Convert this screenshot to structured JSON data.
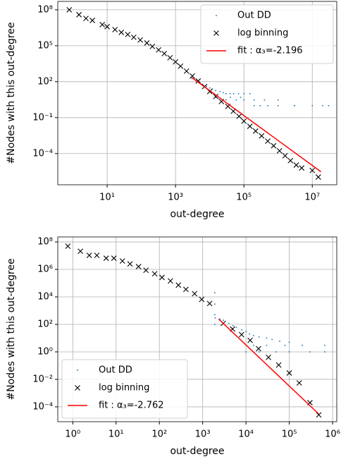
{
  "chart_data": [
    {
      "type": "scatter",
      "xscale": "log",
      "yscale": "log",
      "grid": true,
      "legend": "upper right",
      "xlabel": "out-degree",
      "ylabel": "#Nodes with this out-degree",
      "xlim": [
        0.36,
        52000000
      ],
      "ylim": [
        2.5e-07,
        500000000.0
      ],
      "xticks": [
        {
          "value": 10,
          "label": "10¹"
        },
        {
          "value": 1000,
          "label": "10³"
        },
        {
          "value": 100000,
          "label": "10⁵"
        },
        {
          "value": 10000000,
          "label": "10⁷"
        }
      ],
      "yticks": [
        {
          "value": 0.0001,
          "label": "10⁻⁴"
        },
        {
          "value": 0.1,
          "label": "10⁻¹"
        },
        {
          "value": 100,
          "label": "10²"
        },
        {
          "value": 100000,
          "label": "10⁵"
        },
        {
          "value": 100000000,
          "label": "10⁸"
        }
      ],
      "series": [
        {
          "name": "Out DD",
          "color": "#1f77b4",
          "style": "dot",
          "x": [
            3000,
            4000,
            5000,
            6000,
            8000,
            10000,
            12000,
            15000,
            20000,
            25000,
            30000,
            40000,
            50000,
            70000,
            100000,
            150000,
            200000,
            300000,
            500000,
            1000000,
            3000000,
            20000000,
            30000,
            60000,
            100000,
            200000,
            400000,
            1000000,
            3000000,
            10000000,
            30000000,
            15000,
            40000,
            80000
          ],
          "values": [
            200,
            120,
            90,
            60,
            40,
            30,
            25,
            18,
            15,
            12,
            10,
            10,
            10,
            10,
            10,
            10,
            1,
            1,
            1,
            1,
            1,
            1,
            3,
            3,
            3,
            3,
            3,
            3,
            1,
            1,
            1,
            5,
            5,
            5
          ]
        },
        {
          "name": "log binning",
          "color": "#000000",
          "style": "x",
          "x": [
            0.78,
            1.5,
            2.4,
            3.7,
            7.2,
            10,
            17,
            26,
            40,
            60,
            93,
            145,
            210,
            320,
            470,
            690,
            1000,
            1400,
            2100,
            3100,
            4600,
            7100,
            10000,
            15000,
            22000,
            34000,
            49000,
            72000,
            100000,
            150000,
            220000,
            330000,
            500000,
            740000,
            1100000,
            1600000,
            2300000,
            3400000,
            4900000,
            10000000,
            15000000
          ],
          "values": [
            100000000,
            39000000,
            19000000,
            13000000,
            5800000,
            3900000,
            2200000,
            1300000,
            870000,
            510000,
            300000,
            170000,
            87000,
            45000,
            22000,
            10000,
            4500,
            1950,
            760,
            300,
            115,
            39,
            15,
            5.8,
            2.2,
            0.87,
            0.34,
            0.13,
            0.051,
            0.019,
            0.0076,
            0.003,
            0.0011,
            0.00045,
            0.00017,
            6.6e-05,
            2.6e-05,
            1.1e-05,
            6.3e-06,
            3.9e-06,
            1.1e-06
          ]
        },
        {
          "name": "fit : α₃=-2.196",
          "color": "#ff0000",
          "style": "line",
          "x": [
            3000,
            18000000
          ],
          "values": [
            220,
            3e-06
          ]
        }
      ]
    },
    {
      "type": "scatter",
      "xscale": "log",
      "yscale": "log",
      "grid": true,
      "legend": "lower left",
      "xlabel": "out-degree",
      "ylabel": "#Nodes with this out-degree",
      "xlim": [
        0.45,
        1250000
      ],
      "ylim": [
        8.3e-06,
        230000000
      ],
      "xticks": [
        {
          "value": 1,
          "label": "10⁰"
        },
        {
          "value": 10,
          "label": "10¹"
        },
        {
          "value": 100,
          "label": "10²"
        },
        {
          "value": 1000,
          "label": "10³"
        },
        {
          "value": 10000,
          "label": "10⁴"
        },
        {
          "value": 100000,
          "label": "10⁵"
        },
        {
          "value": 1000000,
          "label": "10⁶"
        }
      ],
      "yticks": [
        {
          "value": 0.0001,
          "label": "10⁻⁴"
        },
        {
          "value": 0.01,
          "label": "10⁻²"
        },
        {
          "value": 1,
          "label": "10⁰"
        },
        {
          "value": 100,
          "label": "10²"
        },
        {
          "value": 10000,
          "label": "10⁴"
        },
        {
          "value": 1000000,
          "label": "10⁶"
        },
        {
          "value": 100000000,
          "label": "10⁸"
        }
      ],
      "series": [
        {
          "name": "Out DD",
          "color": "#1f77b4",
          "style": "dot",
          "x": [
            1900,
            1900,
            1900,
            1900,
            1950,
            2500,
            3000,
            4000,
            5000,
            6000,
            8000,
            10000,
            12000,
            15000,
            20000,
            30000,
            40000,
            60000,
            100000,
            10000,
            20000,
            50000,
            100000,
            300000,
            660000,
            15000,
            30000,
            80000,
            200000,
            660000
          ],
          "values": [
            100,
            500,
            3000,
            20000,
            300,
            250,
            200,
            120,
            80,
            60,
            40,
            30,
            20,
            15,
            12,
            10,
            8,
            6,
            5,
            1,
            1,
            1,
            1,
            1,
            1,
            3,
            3,
            3,
            3,
            3
          ]
        },
        {
          "name": "log binning",
          "color": "#000000",
          "style": "x",
          "x": [
            0.77,
            1.5,
            2.4,
            3.6,
            5.9,
            8.9,
            14,
            21,
            33,
            49,
            78,
            115,
            180,
            275,
            410,
            650,
            950,
            1450,
            3000,
            4900,
            7900,
            12500,
            19500,
            33000,
            57000,
            100000,
            170000,
            300000,
            480000
          ],
          "values": [
            49000000,
            21000000,
            10500000,
            10500000,
            6500000,
            6500000,
            4100000,
            2500000,
            1600000,
            870000,
            480000,
            260000,
            145000,
            72000,
            35000,
            17000,
            6600,
            3300,
            118,
            46,
            18,
            6.9,
            1.7,
            0.4,
            0.11,
            0.029,
            0.0055,
            0.0002,
            2.6e-05
          ]
        },
        {
          "name": "fit : α₃=-2.762",
          "color": "#ff0000",
          "style": "line",
          "x": [
            2350,
            480000
          ],
          "values": [
            240,
            3e-05
          ]
        }
      ]
    }
  ]
}
